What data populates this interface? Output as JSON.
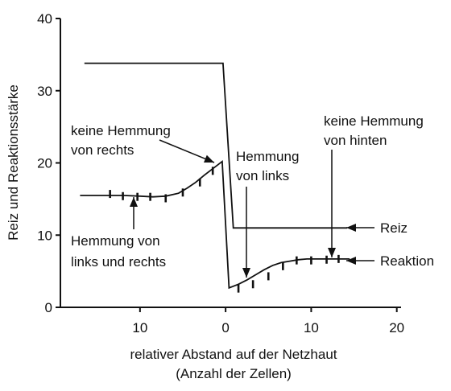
{
  "chart_data": {
    "type": "line",
    "xlabel": [
      "relativer Abstand auf der Netzhaut",
      "(Anzahl der Zellen)"
    ],
    "ylabel": "Reiz und Reaktionsstärke",
    "xlim": [
      -19.3,
      20.5
    ],
    "ylim": [
      0,
      40
    ],
    "x_ticks": [
      {
        "value": -10,
        "label": "10"
      },
      {
        "value": 0,
        "label": "0"
      },
      {
        "value": 10,
        "label": "10"
      },
      {
        "value": 20,
        "label": "20"
      }
    ],
    "y_ticks": [
      0,
      10,
      20,
      30,
      40
    ],
    "series": [
      {
        "name": "Reiz",
        "x": [
          -16.5,
          -0.3,
          0.9,
          14.2
        ],
        "y": [
          33.8,
          33.8,
          11.0,
          11.0
        ]
      },
      {
        "name": "Reaktion",
        "x": [
          -17.0,
          -12.0,
          -10.0,
          -8.5,
          -7.0,
          -5.5,
          -4.5,
          -3.5,
          -2.5,
          -1.5,
          -0.4,
          0.4,
          1.5,
          2.5,
          3.5,
          4.5,
          5.5,
          6.5,
          7.5,
          8.5,
          9.5,
          10.5,
          11.5,
          12.5,
          13.5,
          14.5
        ],
        "y": [
          15.5,
          15.5,
          15.4,
          15.3,
          15.4,
          15.8,
          16.5,
          17.3,
          18.3,
          19.2,
          20.2,
          2.7,
          3.2,
          3.8,
          4.5,
          5.2,
          5.8,
          6.2,
          6.4,
          6.6,
          6.7,
          6.7,
          6.7,
          6.7,
          6.7,
          6.7
        ]
      }
    ],
    "measurements": {
      "x": [
        -13.5,
        -12.0,
        -10.3,
        -8.8,
        -7.0,
        -5.0,
        -3.0,
        -1.5,
        1.5,
        3.2,
        5.0,
        6.7,
        8.3,
        10.0,
        11.8,
        13.2
      ],
      "y": [
        15.7,
        15.4,
        15.3,
        15.3,
        15.1,
        15.9,
        17.3,
        18.9,
        2.6,
        3.2,
        4.3,
        5.7,
        6.5,
        6.5,
        6.6,
        6.7
      ]
    },
    "annotations": [
      {
        "lines": [
          "keine Hemmung",
          "von rechts"
        ]
      },
      {
        "lines": [
          "Hemmung",
          "von links"
        ]
      },
      {
        "lines": [
          "keine Hemmung",
          "von hinten"
        ]
      },
      {
        "lines": [
          "Hemmung von",
          "links und rechts"
        ]
      }
    ],
    "legend": [
      {
        "label": "Reiz"
      },
      {
        "label": "Reaktion"
      }
    ]
  }
}
